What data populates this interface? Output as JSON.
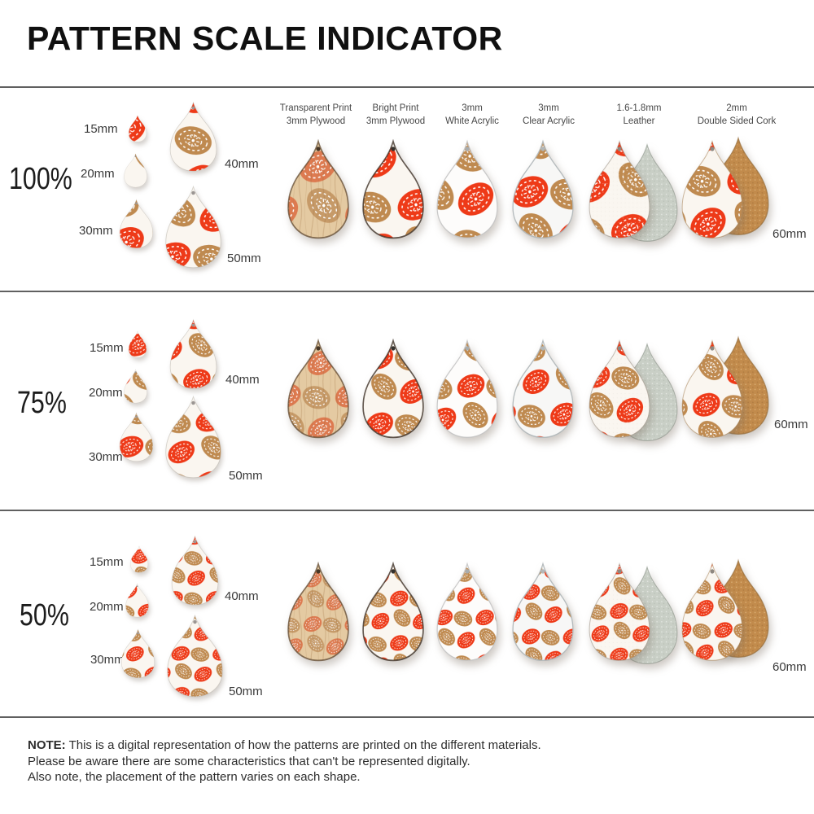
{
  "title": "PATTERN SCALE INDICATOR",
  "columns": [
    {
      "line1": "Transparent Print",
      "line2": "3mm Plywood",
      "material": "wood"
    },
    {
      "line1": "Bright Print",
      "line2": "3mm Plywood",
      "material": "bright"
    },
    {
      "line1": "3mm",
      "line2": "White Acrylic",
      "material": "white"
    },
    {
      "line1": "3mm",
      "line2": "Clear Acrylic",
      "material": "clear"
    },
    {
      "line1": "1.6-1.8mm",
      "line2": "Leather",
      "material": "leather"
    },
    {
      "line1": "2mm",
      "line2": "Double Sided Cork",
      "material": "cork"
    }
  ],
  "rows": [
    {
      "scale_label": "100%",
      "pattern_scale": 1
    },
    {
      "scale_label": "75%",
      "pattern_scale": 0.75
    },
    {
      "scale_label": "50%",
      "pattern_scale": 0.5
    }
  ],
  "size_labels": {
    "s15": "15mm",
    "s20": "20mm",
    "s30": "30mm",
    "s40": "40mm",
    "s50": "50mm",
    "s60": "60mm"
  },
  "note": {
    "label": "NOTE:",
    "line1": "This is a digital representation of how the patterns are printed on the different materials.",
    "line2": "Please be aware there are some characteristics that can't be represented digitally.",
    "line3": "Also note, the placement of the pattern varies on each shape."
  },
  "colors": {
    "red": "#ee3a18",
    "tan": "#bf8a50",
    "red_on_wood": "#dd7a50",
    "tan_on_wood": "#c69a68",
    "wood_base": "#e4caa2",
    "print_bg": "#faf6f0",
    "white_acrylic": "#fdfcfb",
    "clear_acrylic": "#f7f7f6",
    "leather_suede": "#c9cfc6",
    "cork": "#c28b4c"
  }
}
